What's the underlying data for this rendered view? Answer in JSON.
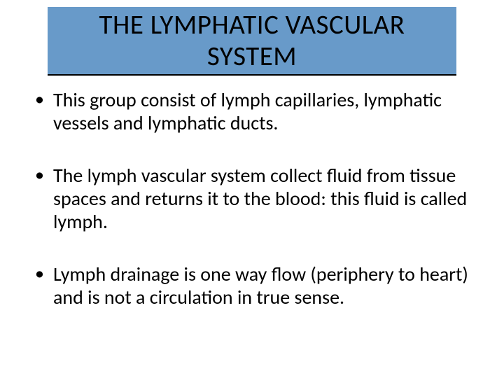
{
  "slide": {
    "title": "THE LYMPHATIC VASCULAR SYSTEM",
    "title_background": "#689ac9",
    "title_underline_color": "#000000",
    "title_fontsize": 39,
    "body_fontsize": 28,
    "text_color": "#000000",
    "background_color": "#ffffff",
    "bullets": [
      "This group consist of lymph capillaries, lymphatic vessels and lymphatic ducts.",
      "The lymph vascular system collect fluid from tissue spaces and returns it to the blood: this fluid is called lymph.",
      "Lymph drainage is one way flow (periphery to heart) and is not a circulation in true sense."
    ]
  }
}
